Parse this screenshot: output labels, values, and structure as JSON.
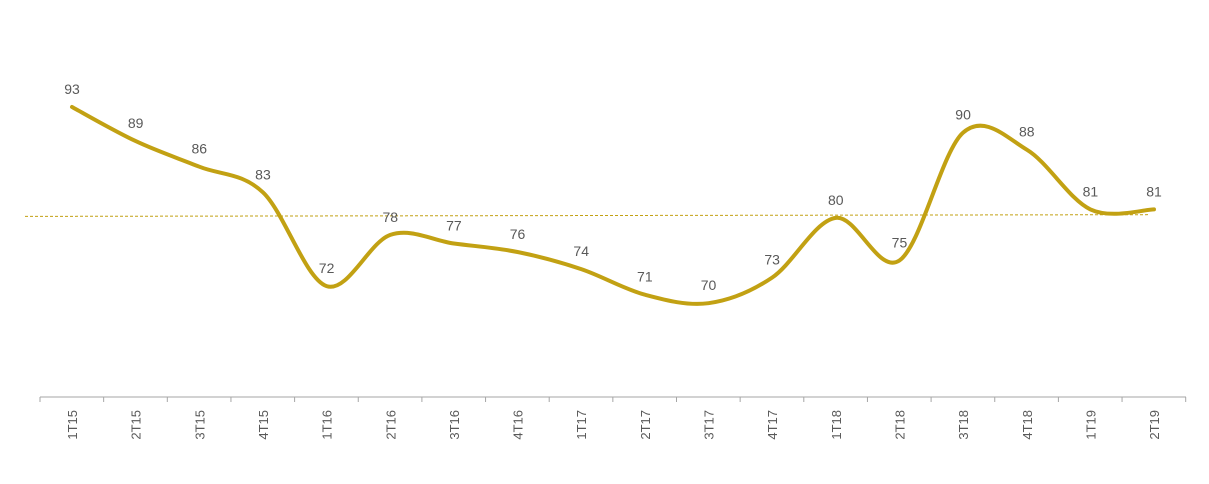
{
  "chart_data": {
    "type": "line",
    "categories": [
      "1T15",
      "2T15",
      "3T15",
      "4T15",
      "1T16",
      "2T16",
      "3T16",
      "4T16",
      "1T17",
      "2T17",
      "3T17",
      "4T17",
      "1T18",
      "2T18",
      "3T18",
      "4T18",
      "1T19",
      "2T19"
    ],
    "series": [
      {
        "values": [
          93,
          89,
          86,
          83,
          72,
          78,
          77,
          76,
          74,
          71,
          70,
          73,
          80,
          75,
          90,
          88,
          81,
          81
        ],
        "color": "#C2A113"
      }
    ],
    "reference_line": {
      "start": 80,
      "end": 80.2,
      "color": "#C2A113",
      "style": "dashed"
    },
    "title": "",
    "xlabel": "",
    "ylabel": "",
    "data_labels": true,
    "grid": false,
    "legend": "none",
    "axis_color": "#A6A6A6",
    "label_color": "#595959"
  }
}
